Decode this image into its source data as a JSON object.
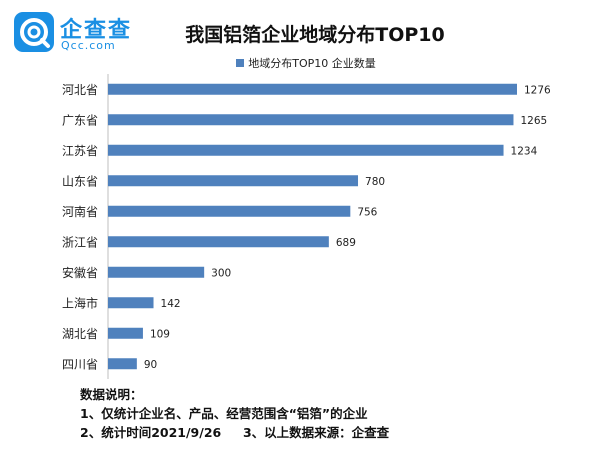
{
  "logo": {
    "name": "企查查",
    "url": "Qcc.com",
    "brand_color": "#1a8fe3"
  },
  "colors": {
    "bar": "#4f81bd"
  },
  "chart_data": {
    "type": "bar",
    "orientation": "horizontal",
    "title": "我国铝箔企业地域分布TOP10",
    "categories": [
      "河北省",
      "广东省",
      "江苏省",
      "山东省",
      "河南省",
      "浙江省",
      "安徽省",
      "上海市",
      "湖北省",
      "四川省"
    ],
    "series": [
      {
        "name": "地域分布TOP10 企业数量",
        "values": [
          1276,
          1265,
          1234,
          780,
          756,
          689,
          300,
          142,
          109,
          90
        ]
      }
    ],
    "xlim": [
      0,
      1276
    ],
    "legend": "top",
    "grid": false
  },
  "notes": {
    "heading": "数据说明：",
    "line1": "1、仅统计企业名、产品、经营范围含“铝箔”的企业",
    "line2": "2、统计时间2021/9/26     3、以上数据来源：企查查"
  }
}
